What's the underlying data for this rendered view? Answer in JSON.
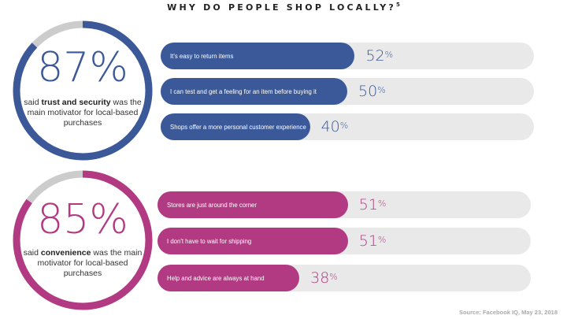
{
  "title": "WHY DO PEOPLE SHOP LOCALLY?",
  "title_footnote": "5",
  "source": "Source: Facebook IQ, May 23, 2018",
  "colors": {
    "blue": "#3b5998",
    "magenta": "#b23a82",
    "track": "#e9e9ea",
    "ring_gap": "#cccccc"
  },
  "chart_data": [
    {
      "type": "bar",
      "headline_value": 87,
      "headline_label": "87%",
      "headline_caption": {
        "pre": "said",
        "bold": "trust and security",
        "post": "was the main motivator for local-based purchases"
      },
      "color": "#3b5998",
      "categories": [
        "It's easy to return items",
        "I can test and get a feeling for an item before buying it",
        "Shops offer a more personal customer experience"
      ],
      "values": [
        52,
        50,
        40
      ],
      "value_labels": [
        "52",
        "50",
        "40"
      ],
      "unit": "%"
    },
    {
      "type": "bar",
      "headline_value": 85,
      "headline_label": "85%",
      "headline_caption": {
        "pre": "said",
        "bold": "convenience",
        "post": "was the main motivator for local-based purchases"
      },
      "color": "#b23a82",
      "categories": [
        "Stores are just around the corner",
        "I don't have to wait for shipping",
        "Help and advice are always at hand"
      ],
      "values": [
        51,
        51,
        38
      ],
      "value_labels": [
        "51",
        "51",
        "38"
      ],
      "unit": "%"
    }
  ]
}
